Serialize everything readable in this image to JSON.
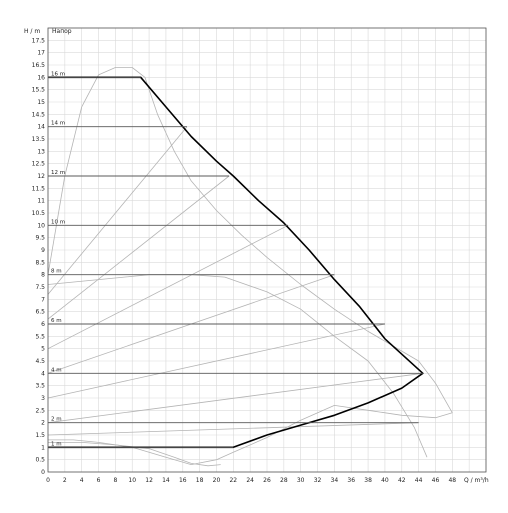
{
  "chart_data": {
    "type": "line",
    "ylabel": "H / m",
    "ylabel_extra": "Напор",
    "xlabel": "Q / m³/h",
    "xlim": [
      0,
      52
    ],
    "ylim": [
      0,
      18
    ],
    "grid": true,
    "x_ticks": [
      "0",
      "2",
      "4",
      "6",
      "8",
      "10",
      "12",
      "14",
      "16",
      "18",
      "20",
      "22",
      "24",
      "26",
      "28",
      "30",
      "32",
      "34",
      "36",
      "38",
      "40",
      "42",
      "44",
      "46",
      "48"
    ],
    "y_ticks": [
      "0",
      "0.5",
      "1",
      "1.5",
      "2",
      "2.5",
      "3",
      "3.5",
      "4",
      "4.5",
      "5",
      "5.5",
      "6",
      "6.5",
      "7",
      "7.5",
      "8",
      "8.5",
      "9",
      "9.5",
      "10",
      "10.5",
      "11",
      "11.5",
      "12",
      "12.5",
      "13",
      "13.5",
      "14",
      "14.5",
      "15",
      "15.5",
      "16",
      "16.5",
      "17",
      "17.5"
    ],
    "setpoint_lines": [
      {
        "label": "16 m",
        "head": 16,
        "q_end": 11
      },
      {
        "label": "14 m",
        "head": 14,
        "q_end": 16.5
      },
      {
        "label": "12 m",
        "head": 12,
        "q_end": 21.5
      },
      {
        "label": "10 m",
        "head": 10,
        "q_end": 28.5
      },
      {
        "label": "8 m",
        "head": 8,
        "q_end": 34
      },
      {
        "label": "6 m",
        "head": 6,
        "q_end": 40
      },
      {
        "label": "4 m",
        "head": 4,
        "q_end": 44.5
      },
      {
        "label": "2 m",
        "head": 2,
        "q_end": 44
      },
      {
        "label": "1 m",
        "head": 1,
        "q_end": 22
      }
    ],
    "series": [
      {
        "role": "max_curve",
        "color": "#000000",
        "x": [
          0,
          11,
          14,
          17,
          20,
          22,
          25,
          28,
          31,
          34,
          37,
          40,
          44.5,
          42,
          38,
          34,
          30,
          26,
          22,
          0
        ],
        "y": [
          16,
          16,
          14.8,
          13.6,
          12.6,
          12,
          11,
          10.1,
          9,
          7.8,
          6.7,
          5.4,
          4,
          3.4,
          2.8,
          2.3,
          1.9,
          1.5,
          1,
          1
        ]
      },
      {
        "role": "proportional_lines",
        "color": "#b4b4b4",
        "lines": [
          {
            "x": [
              0,
              16.5
            ],
            "y": [
              7.2,
              14
            ]
          },
          {
            "x": [
              0,
              21.5
            ],
            "y": [
              6.2,
              12
            ]
          },
          {
            "x": [
              0,
              28.5
            ],
            "y": [
              5,
              10
            ]
          },
          {
            "x": [
              0,
              34
            ],
            "y": [
              4,
              8
            ]
          },
          {
            "x": [
              0,
              40
            ],
            "y": [
              3,
              6
            ]
          },
          {
            "x": [
              0,
              44.5
            ],
            "y": [
              2,
              4
            ]
          },
          {
            "x": [
              0,
              44
            ],
            "y": [
              1.5,
              2
            ]
          }
        ]
      },
      {
        "role": "efficiency_envelope",
        "color": "#b4b4b4",
        "x": [
          0,
          2,
          4,
          6,
          8,
          10,
          11.5,
          13,
          15,
          17,
          20,
          23,
          26,
          30,
          34,
          38,
          42,
          44,
          46,
          48,
          46,
          42,
          38,
          34,
          30,
          26,
          22,
          20,
          17,
          14,
          10,
          6,
          3,
          0
        ],
        "y": [
          8,
          12,
          14.8,
          16.1,
          16.4,
          16.4,
          16,
          14.5,
          13,
          11.8,
          10.6,
          9.6,
          8.7,
          7.6,
          6.6,
          5.7,
          4.9,
          4.5,
          3.6,
          2.4,
          2.2,
          2.3,
          2.5,
          2.7,
          2.1,
          1.4,
          0.8,
          0.5,
          0.3,
          0.6,
          1.0,
          1.2,
          1.3,
          1.3
        ]
      },
      {
        "role": "efficiency_hump",
        "color": "#b4b4b4",
        "x": [
          0,
          6,
          12,
          17,
          21,
          26,
          30,
          34,
          38,
          41,
          43.5,
          45
        ],
        "y": [
          7.6,
          7.8,
          8,
          8,
          7.9,
          7.3,
          6.6,
          5.5,
          4.5,
          3.2,
          1.8,
          0.6
        ]
      },
      {
        "role": "lower_hump",
        "color": "#b4b4b4",
        "x": [
          0,
          4,
          8,
          12,
          15,
          17,
          19,
          20.5
        ],
        "y": [
          1.2,
          1.2,
          1.1,
          0.95,
          0.6,
          0.35,
          0.25,
          0.3
        ]
      }
    ]
  }
}
